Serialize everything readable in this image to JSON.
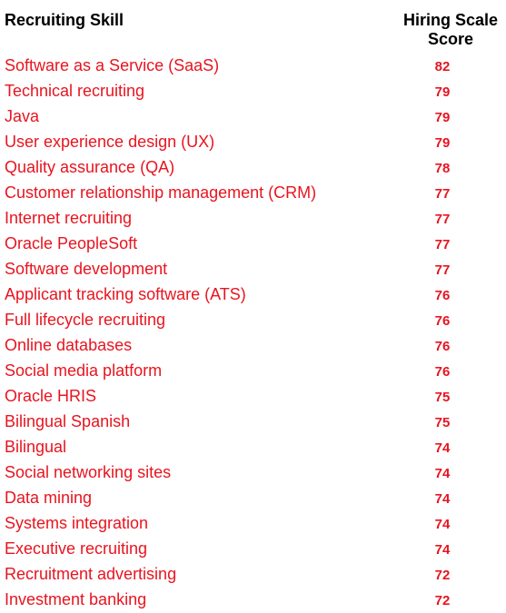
{
  "header": {
    "skill_label": "Recruiting Skill",
    "score_label_line1": "Hiring Scale",
    "score_label_line2": "Score"
  },
  "colors": {
    "text_red": "#e8141f",
    "header_black": "#000000"
  },
  "chart_data": {
    "type": "table",
    "columns": [
      "Recruiting Skill",
      "Hiring Scale Score"
    ],
    "rows": [
      {
        "skill": "Software as a Service (SaaS)",
        "score": 82
      },
      {
        "skill": "Technical recruiting",
        "score": 79
      },
      {
        "skill": "Java",
        "score": 79
      },
      {
        "skill": "User experience design (UX)",
        "score": 79
      },
      {
        "skill": "Quality assurance (QA)",
        "score": 78
      },
      {
        "skill": "Customer relationship management (CRM)",
        "score": 77
      },
      {
        "skill": "Internet recruiting",
        "score": 77
      },
      {
        "skill": "Oracle PeopleSoft",
        "score": 77
      },
      {
        "skill": "Software development",
        "score": 77
      },
      {
        "skill": "Applicant tracking software (ATS)",
        "score": 76
      },
      {
        "skill": "Full lifecycle recruiting",
        "score": 76
      },
      {
        "skill": "Online databases",
        "score": 76
      },
      {
        "skill": "Social media platform",
        "score": 76
      },
      {
        "skill": "Oracle HRIS",
        "score": 75
      },
      {
        "skill": "Bilingual Spanish",
        "score": 75
      },
      {
        "skill": "Bilingual",
        "score": 74
      },
      {
        "skill": "Social networking sites",
        "score": 74
      },
      {
        "skill": "Data mining",
        "score": 74
      },
      {
        "skill": "Systems integration",
        "score": 74
      },
      {
        "skill": "Executive recruiting",
        "score": 74
      },
      {
        "skill": "Recruitment advertising",
        "score": 72
      },
      {
        "skill": "Investment banking",
        "score": 72
      }
    ]
  }
}
